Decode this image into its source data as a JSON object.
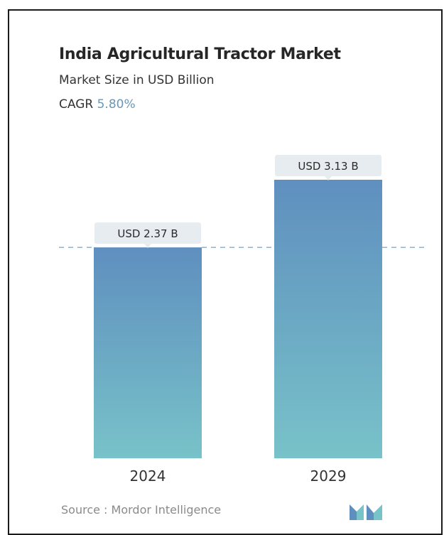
{
  "header": {
    "title": "India Agricultural Tractor Market",
    "subtitle": "Market Size in USD Billion",
    "cagr_label": "CAGR",
    "cagr_value": "5.80%"
  },
  "footer": {
    "source": "Source :  Mordor Intelligence",
    "logo_icon": "mordor-intelligence-logo-icon"
  },
  "colors": {
    "bar_top": "#5f8fbf",
    "bar_bottom": "#78c2c9",
    "label_bg": "#e6ecef",
    "reference_line": "#8aa9c2",
    "cagr_accent": "#6a97b5",
    "logo": "#5f8fbf"
  },
  "chart_data": {
    "type": "bar",
    "title": "India Agricultural Tractor Market",
    "subtitle": "Market Size in USD Billion",
    "categories": [
      "2024",
      "2029"
    ],
    "values": [
      2.37,
      3.13
    ],
    "data_labels": [
      "USD 2.37 B",
      "USD 3.13 B"
    ],
    "ylabel": "",
    "xlabel": "",
    "ylim": [
      0,
      3.13
    ],
    "grid": false,
    "reference_line": {
      "value": 2.37,
      "style": "dashed"
    },
    "legend": "none"
  }
}
